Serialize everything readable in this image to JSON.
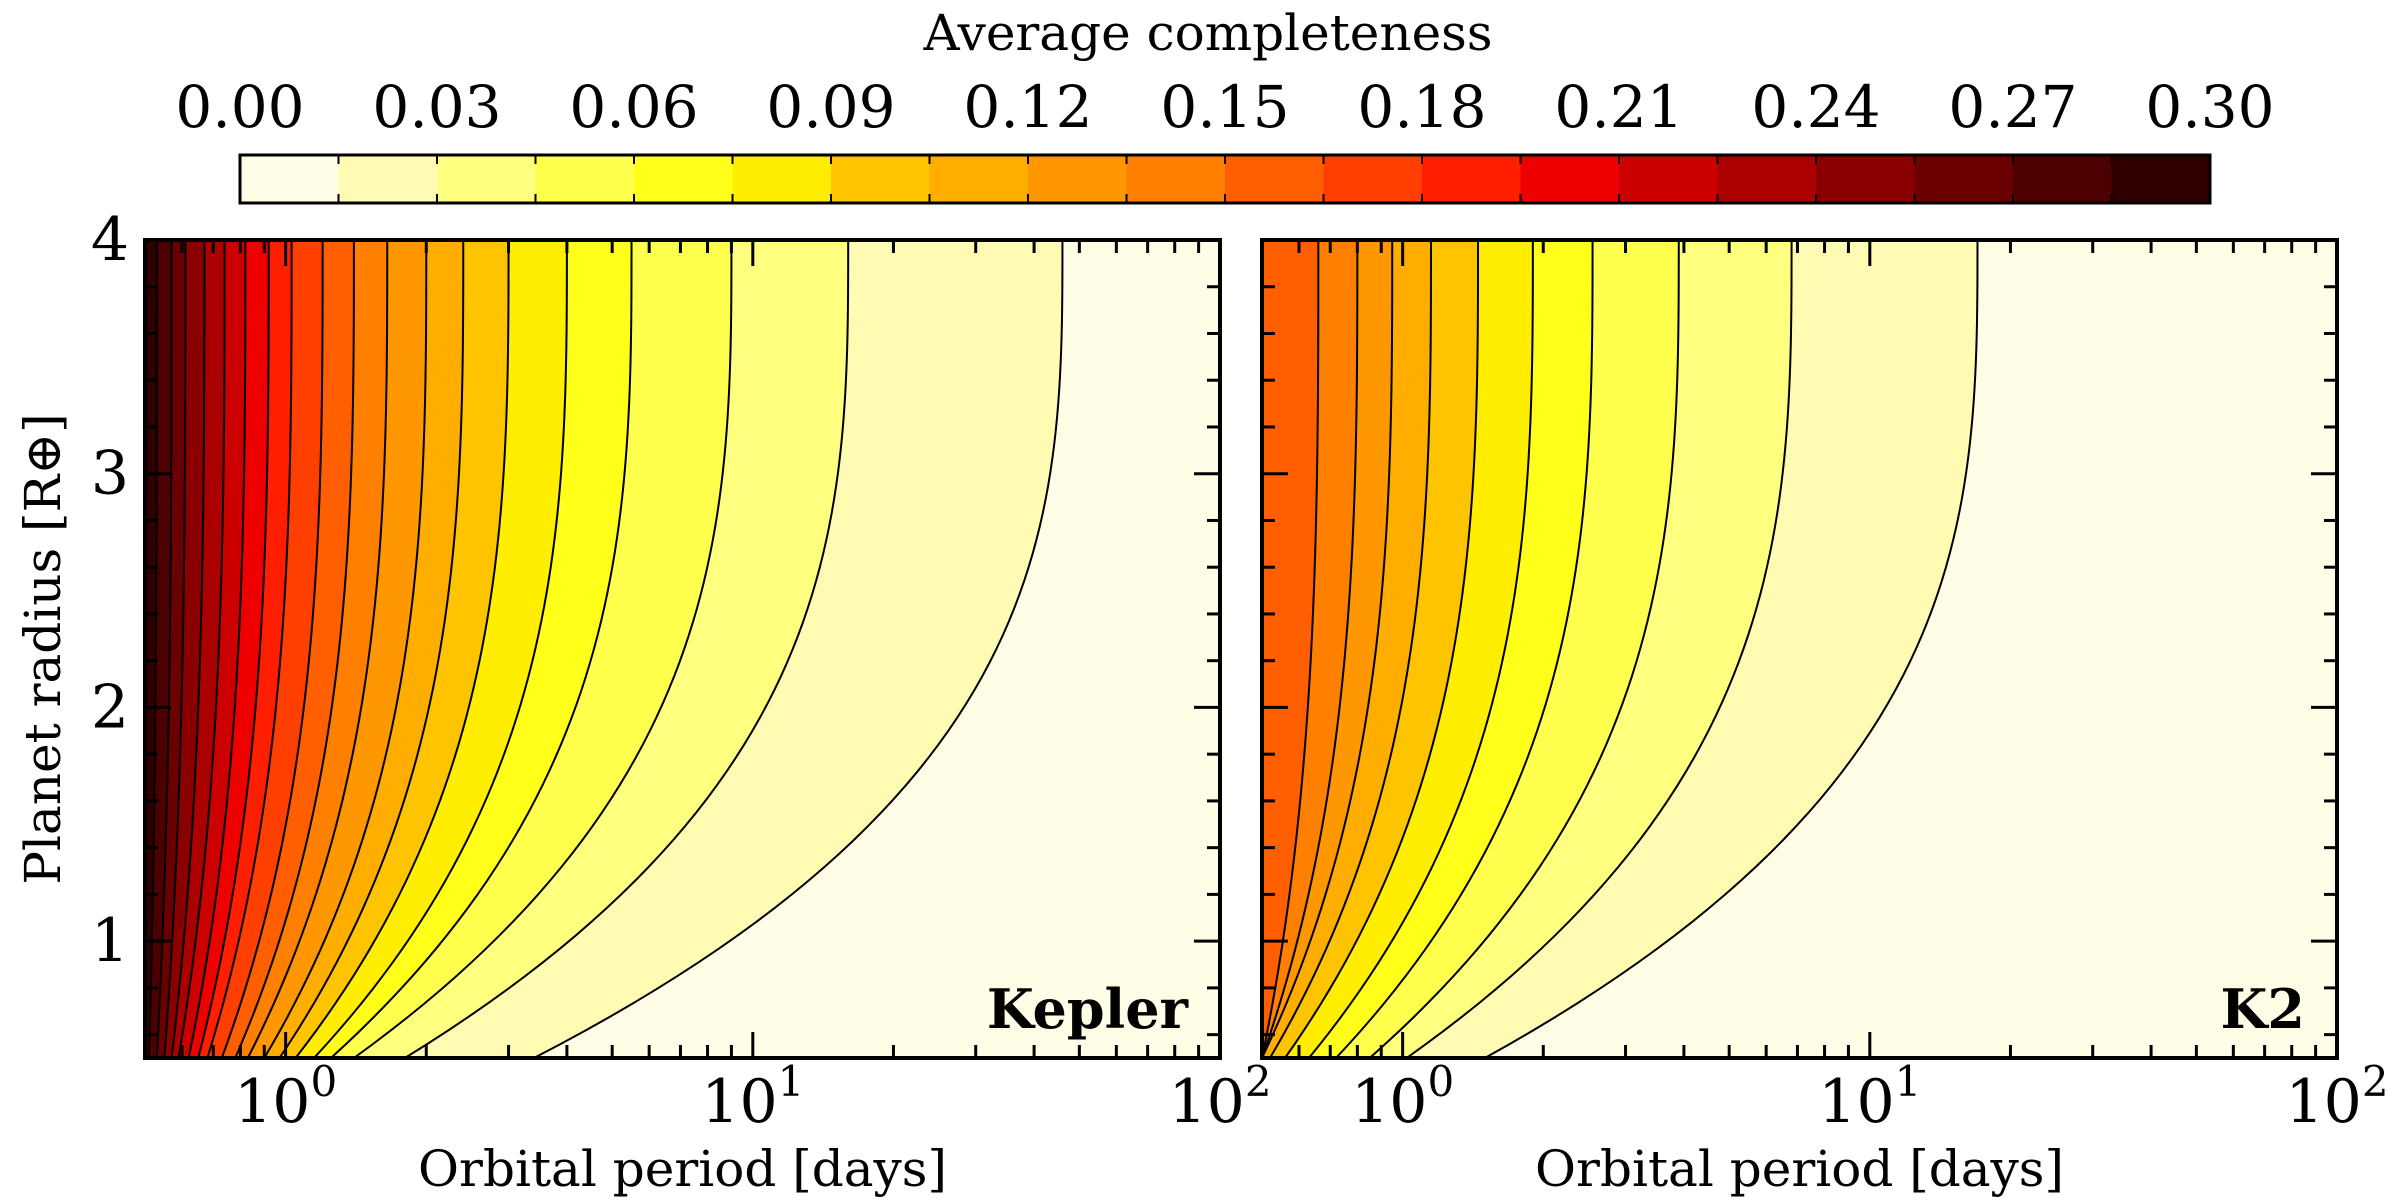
{
  "colorbar": {
    "label": "Average completeness",
    "tick_labels": [
      "0.00",
      "0.03",
      "0.06",
      "0.09",
      "0.12",
      "0.15",
      "0.18",
      "0.21",
      "0.24",
      "0.27",
      "0.30"
    ],
    "levels": [
      0.0,
      0.015,
      0.03,
      0.045,
      0.06,
      0.075,
      0.09,
      0.105,
      0.12,
      0.135,
      0.15,
      0.165,
      0.18,
      0.195,
      0.21,
      0.225,
      0.24,
      0.255,
      0.27,
      0.285,
      0.3
    ],
    "colors": [
      "#fffde6",
      "#fffbb2",
      "#ffff7f",
      "#ffff4d",
      "#ffff1a",
      "#ffee00",
      "#ffc400",
      "#ffae00",
      "#ff9800",
      "#ff7f00",
      "#ff5f00",
      "#ff3f00",
      "#ff1f00",
      "#ee0000",
      "#cc0000",
      "#aa0000",
      "#8a0000",
      "#6a0000",
      "#4c0000",
      "#300000"
    ]
  },
  "chart_data": [
    {
      "type": "heatmap",
      "panel_label": "Kepler",
      "xlabel": "Orbital period [days]",
      "ylabel": "Planet radius [R⊕]",
      "xscale": "log",
      "xlim": [
        0.5,
        100
      ],
      "ylim": [
        0.5,
        4
      ],
      "x_tick_labels": [
        "10^0",
        "10^1",
        "10^2"
      ],
      "y_tick_labels": [
        "1",
        "2",
        "3",
        "4"
      ],
      "contours": [
        {
          "level": 0.015,
          "x_at_top": 46,
          "x_at_bottom": 3.4
        },
        {
          "level": 0.03,
          "x_at_top": 16,
          "x_at_bottom": 1.8
        },
        {
          "level": 0.045,
          "x_at_top": 9.0,
          "x_at_bottom": 1.4
        },
        {
          "level": 0.06,
          "x_at_top": 5.5,
          "x_at_bottom": 1.25
        },
        {
          "level": 0.075,
          "x_at_top": 4.0,
          "x_at_bottom": 1.15
        },
        {
          "level": 0.09,
          "x_at_top": 3.0,
          "x_at_bottom": 1.05
        },
        {
          "level": 0.105,
          "x_at_top": 2.4,
          "x_at_bottom": 0.97
        },
        {
          "level": 0.12,
          "x_at_top": 2.0,
          "x_at_bottom": 0.9
        },
        {
          "level": 0.135,
          "x_at_top": 1.65,
          "x_at_bottom": 0.83
        },
        {
          "level": 0.15,
          "x_at_top": 1.4,
          "x_at_bottom": 0.78
        },
        {
          "level": 0.165,
          "x_at_top": 1.2,
          "x_at_bottom": 0.73
        },
        {
          "level": 0.18,
          "x_at_top": 1.03,
          "x_at_bottom": 0.68
        },
        {
          "level": 0.195,
          "x_at_top": 0.92,
          "x_at_bottom": 0.65
        },
        {
          "level": 0.21,
          "x_at_top": 0.82,
          "x_at_bottom": 0.62
        },
        {
          "level": 0.225,
          "x_at_top": 0.74,
          "x_at_bottom": 0.59
        },
        {
          "level": 0.24,
          "x_at_top": 0.67,
          "x_at_bottom": 0.57
        },
        {
          "level": 0.255,
          "x_at_top": 0.61,
          "x_at_bottom": 0.55
        },
        {
          "level": 0.27,
          "x_at_top": 0.57,
          "x_at_bottom": 0.53
        },
        {
          "level": 0.285,
          "x_at_top": 0.53,
          "x_at_bottom": 0.51
        }
      ]
    },
    {
      "type": "heatmap",
      "panel_label": "K2",
      "xlabel": "Orbital period [days]",
      "xscale": "log",
      "xlim": [
        0.5,
        100
      ],
      "ylim": [
        0.5,
        4
      ],
      "x_tick_labels": [
        "10^0",
        "10^1",
        "10^2"
      ],
      "contours": [
        {
          "level": 0.015,
          "x_at_top": 17,
          "x_at_bottom": 1.5
        },
        {
          "level": 0.03,
          "x_at_top": 6.8,
          "x_at_bottom": 1.02
        },
        {
          "level": 0.045,
          "x_at_top": 3.9,
          "x_at_bottom": 0.85
        },
        {
          "level": 0.06,
          "x_at_top": 2.55,
          "x_at_bottom": 0.72
        },
        {
          "level": 0.075,
          "x_at_top": 1.9,
          "x_at_bottom": 0.63
        },
        {
          "level": 0.09,
          "x_at_top": 1.45,
          "x_at_bottom": 0.56
        },
        {
          "level": 0.105,
          "x_at_top": 1.15,
          "x_at_bottom": 0.52
        },
        {
          "level": 0.12,
          "x_at_top": 0.95,
          "x_at_bottom": 0.5
        },
        {
          "level": 0.135,
          "x_at_top": 0.8,
          "x_at_bottom": 0.5
        },
        {
          "level": 0.15,
          "x_at_top": 0.66,
          "x_at_bottom": 0.5
        }
      ]
    }
  ]
}
